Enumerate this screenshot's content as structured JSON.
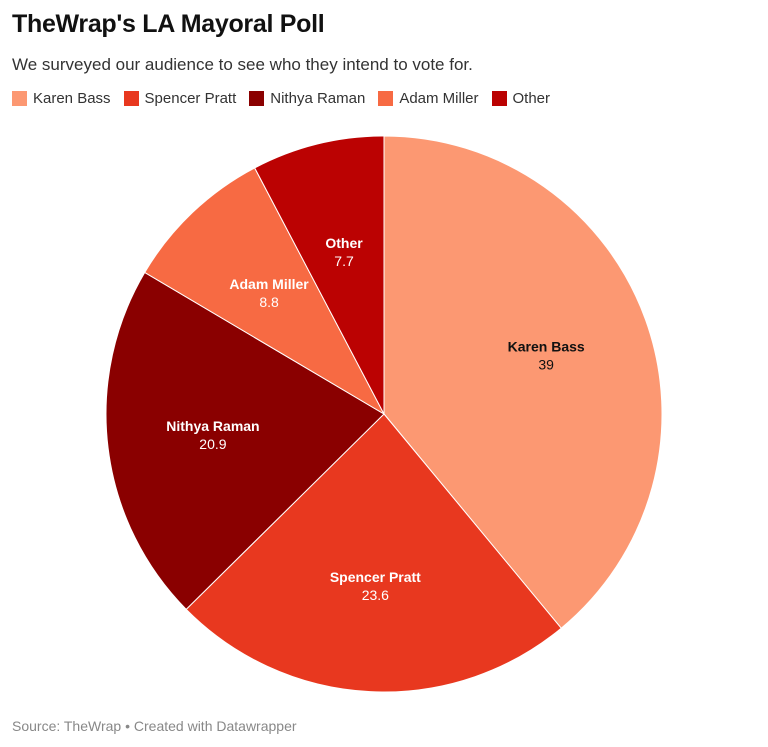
{
  "title": "TheWrap's LA Mayoral Poll",
  "subtitle": "We surveyed our audience to see who they intend to vote for.",
  "footer": "Source: TheWrap • Created with Datawrapper",
  "chart_data": {
    "type": "pie",
    "title": "TheWrap's LA Mayoral Poll",
    "legend_position": "top-left",
    "slices": [
      {
        "label": "Karen Bass",
        "value": 39,
        "color": "#fc9872"
      },
      {
        "label": "Spencer Pratt",
        "value": 23.6,
        "color": "#e8381f"
      },
      {
        "label": "Nithya Raman",
        "value": 20.9,
        "color": "#8a0000"
      },
      {
        "label": "Adam Miller",
        "value": 8.8,
        "color": "#f76a43"
      },
      {
        "label": "Other",
        "value": 7.7,
        "color": "#bb0202"
      }
    ]
  }
}
